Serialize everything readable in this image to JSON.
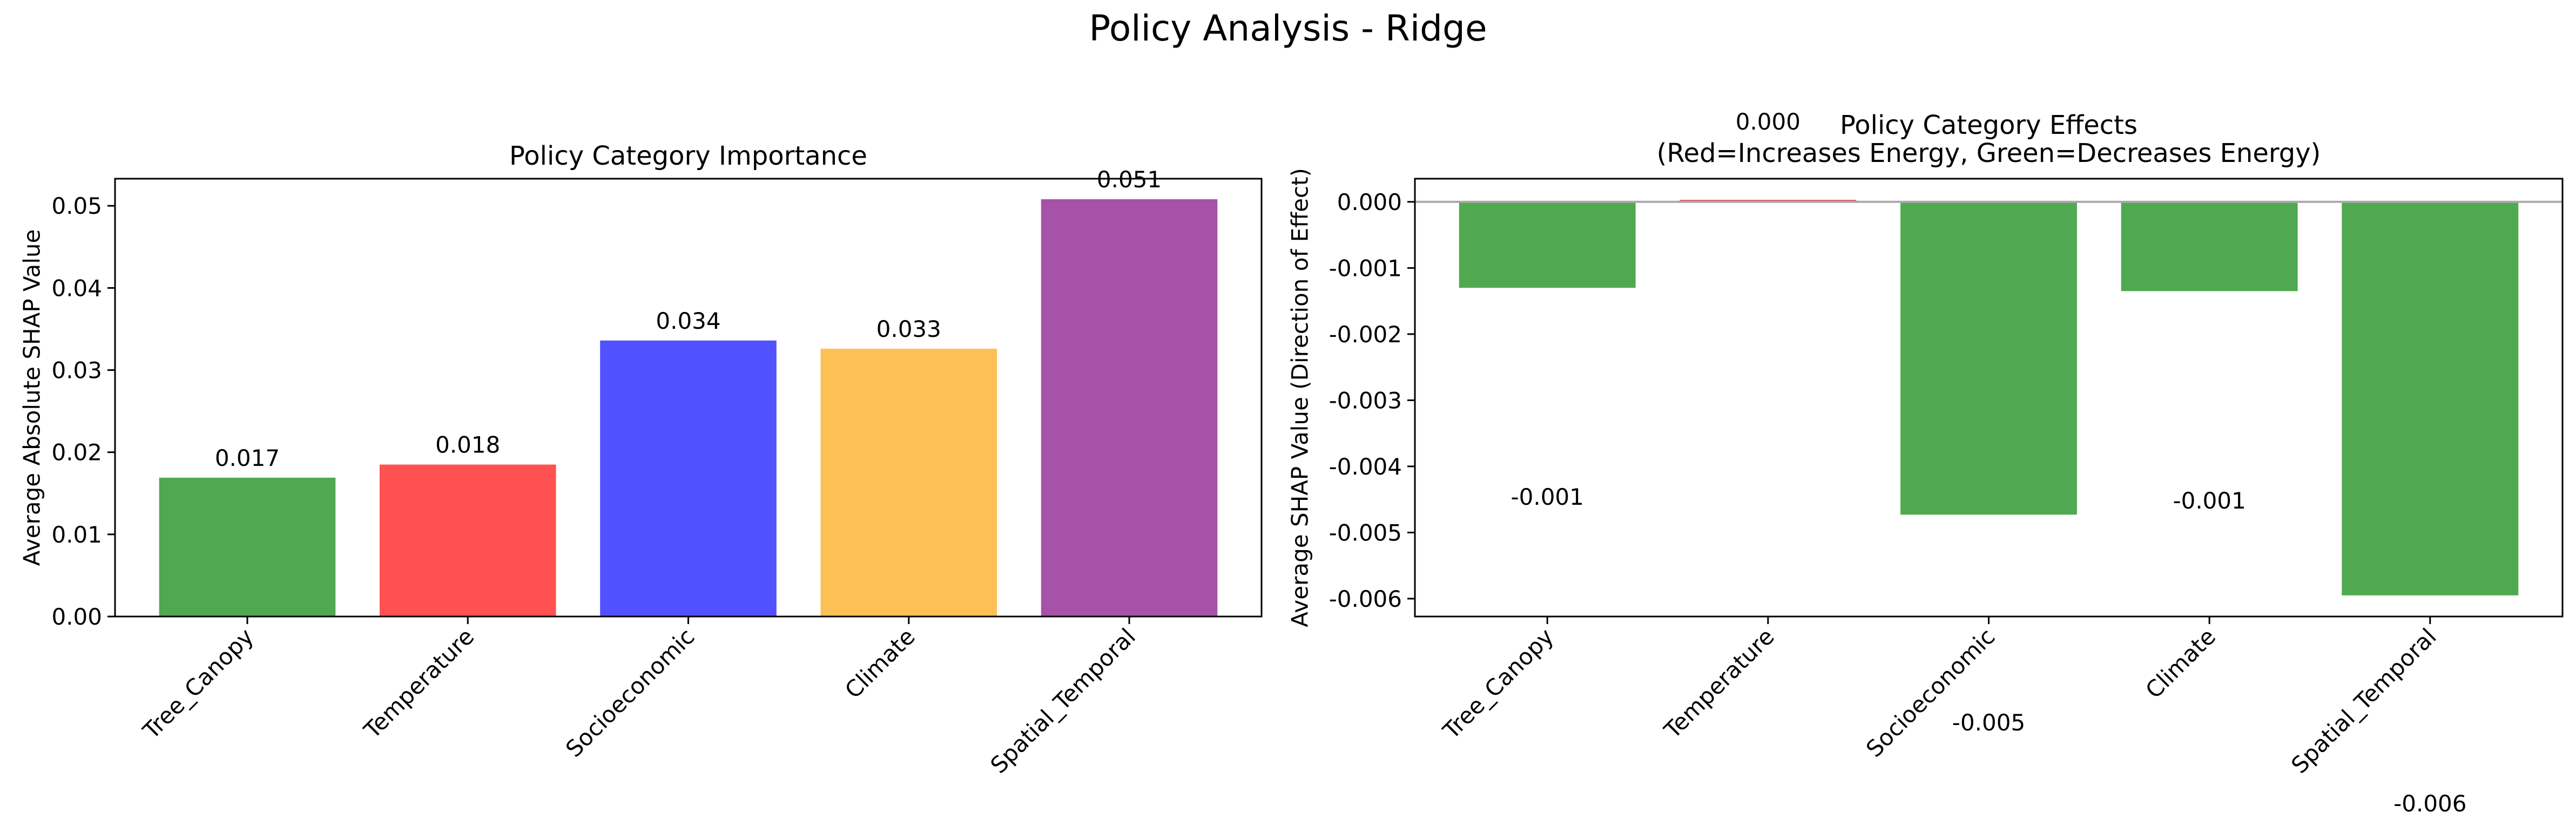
{
  "figure_title": "Policy Analysis - Ridge",
  "chart_data": [
    {
      "type": "bar",
      "title": "Policy Category Importance",
      "xlabel": "",
      "ylabel": "Average Absolute SHAP Value",
      "categories": [
        "Tree_Canopy",
        "Temperature",
        "Socioeconomic",
        "Climate",
        "Spatial_Temporal"
      ],
      "values": [
        0.0169,
        0.0185,
        0.0336,
        0.0326,
        0.0508
      ],
      "data_labels": [
        "0.017",
        "0.018",
        "0.034",
        "0.033",
        "0.051"
      ],
      "colors": [
        "#4aa64a",
        "#ff4b4b",
        "#4b4bff",
        "#fdbe4f",
        "#a34ca7"
      ],
      "ylim": [
        0,
        0.0533
      ],
      "yticks": [
        0,
        0.01,
        0.02,
        0.03,
        0.04,
        0.05
      ],
      "ytick_labels": [
        "0.00",
        "0.01",
        "0.02",
        "0.03",
        "0.04",
        "0.05"
      ],
      "grid": false,
      "legend": "none"
    },
    {
      "type": "bar",
      "title": "Policy Category Effects\n(Red=Increases Energy, Green=Decreases Energy)",
      "xlabel": "",
      "ylabel": "Average SHAP Value (Direction of Effect)",
      "categories": [
        "Tree_Canopy",
        "Temperature",
        "Socioeconomic",
        "Climate",
        "Spatial_Temporal"
      ],
      "values": [
        -0.0013,
        3e-05,
        -0.00473,
        -0.00135,
        -0.00595
      ],
      "data_labels": [
        "-0.001",
        "0.000",
        "-0.005",
        "-0.001",
        "-0.006"
      ],
      "colors": [
        "#4aa64a",
        "#e34a4a",
        "#4aa64a",
        "#4aa64a",
        "#4aa64a"
      ],
      "ylim": [
        -0.00627,
        0.00035
      ],
      "yticks": [
        0,
        -0.001,
        -0.002,
        -0.003,
        -0.004,
        -0.005,
        -0.006
      ],
      "ytick_labels": [
        "0.000",
        "-0.001",
        "-0.002",
        "-0.003",
        "-0.004",
        "-0.005",
        "-0.006"
      ],
      "zero_line_color": "#aaaaaa",
      "grid": false,
      "legend": "none"
    }
  ]
}
